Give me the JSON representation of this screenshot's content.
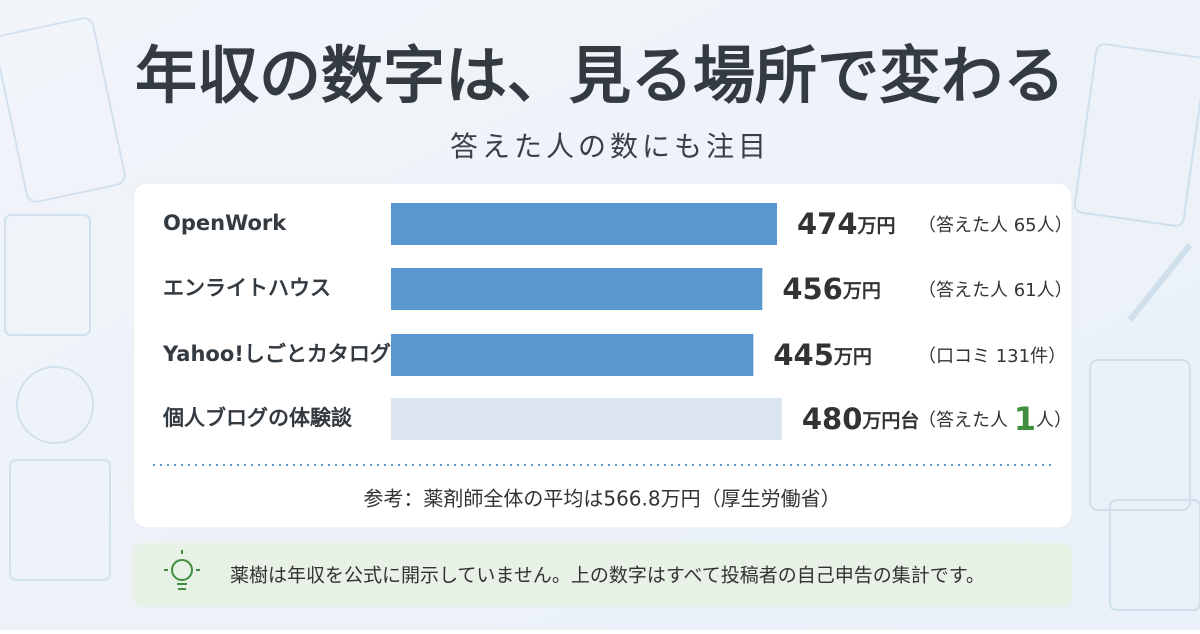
{
  "chart_data": {
    "type": "bar",
    "orientation": "horizontal",
    "title": "年収の数字は、見る場所で変わる",
    "subtitle": "答えた人の数にも注目",
    "categories": [
      "OpenWork",
      "エンライトハウス",
      "Yahoo!しごとカタログ",
      "個人ブログの体験談"
    ],
    "values": [
      474,
      456,
      445,
      480
    ],
    "value_labels": [
      "474万円",
      "456万円",
      "445万円",
      "480万円台"
    ],
    "notes": [
      "（答えた人 65人）",
      "（答えた人 61人）",
      "（口コミ 131件）",
      "（答えた人 1人）"
    ],
    "note_highlight": [
      false,
      false,
      false,
      true
    ],
    "highlight_color": "#3f8f3f",
    "colors": [
      "#5a97cf",
      "#5a97cf",
      "#5a97cf",
      "#dbe6f1"
    ],
    "reference": "参考：薬剤師全体の平均は566.8万円（厚生労働省）",
    "footer": "薬樹は年収を公式に開示していません。上の数字はすべて投稿者の自己申告の集計です。"
  }
}
